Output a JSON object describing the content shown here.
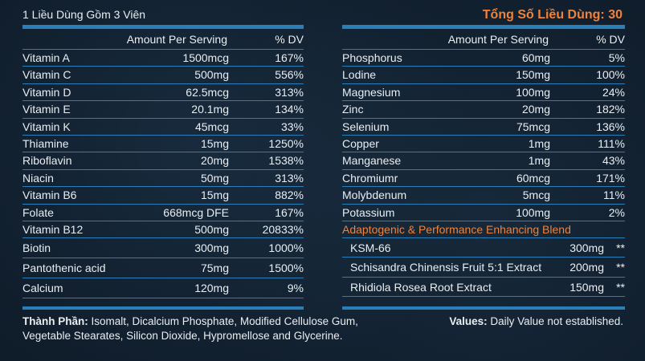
{
  "header": {
    "serving_note": "1 Liều Dùng Gồm 3 Viên",
    "total_servings": "Tổng Số Liều Dùng: 30"
  },
  "columns": {
    "amount": "Amount Per Serving",
    "dv": "% DV"
  },
  "left_rows": [
    {
      "name": "Vitamin A",
      "amount": "1500mcg",
      "dv": "167%"
    },
    {
      "name": "Vitamin C",
      "amount": "500mg",
      "dv": "556%"
    },
    {
      "name": "Vitamin D",
      "amount": "62.5mcg",
      "dv": "313%"
    },
    {
      "name": "Vitamin E",
      "amount": "20.1mg",
      "dv": "134%"
    },
    {
      "name": "Vitamin K",
      "amount": "45mcg",
      "dv": "33%"
    },
    {
      "name": "Thiamine",
      "amount": "15mg",
      "dv": "1250%"
    },
    {
      "name": "Riboflavin",
      "amount": "20mg",
      "dv": "1538%"
    },
    {
      "name": "Niacin",
      "amount": "50mg",
      "dv": "313%"
    },
    {
      "name": "Vitamin B6",
      "amount": "15mg",
      "dv": "882%"
    },
    {
      "name": "Folate",
      "amount": "668mcg DFE",
      "dv": "167%"
    },
    {
      "name": "Vitamin B12",
      "amount": "500mg",
      "dv": "20833%"
    },
    {
      "name": "Biotin",
      "amount": "300mg",
      "dv": "1000%"
    },
    {
      "name": "Pantothenic acid",
      "amount": "75mg",
      "dv": "1500%"
    },
    {
      "name": "Calcium",
      "amount": "120mg",
      "dv": "9%"
    }
  ],
  "right_rows": [
    {
      "name": "Phosphorus",
      "amount": "60mg",
      "dv": "5%"
    },
    {
      "name": "Lodine",
      "amount": "150mg",
      "dv": "100%"
    },
    {
      "name": "Magnesium",
      "amount": "100mg",
      "dv": "24%"
    },
    {
      "name": "Zinc",
      "amount": "20mg",
      "dv": "182%"
    },
    {
      "name": "Selenium",
      "amount": "75mcg",
      "dv": "136%"
    },
    {
      "name": "Copper",
      "amount": "1mg",
      "dv": "111%"
    },
    {
      "name": "Manganese",
      "amount": "1mg",
      "dv": "43%"
    },
    {
      "name": "Chromiumr",
      "amount": "60mcg",
      "dv": "171%"
    },
    {
      "name": "Molybdenum",
      "amount": "5mcg",
      "dv": "11%"
    },
    {
      "name": "Potassium",
      "amount": "100mg",
      "dv": "2%"
    }
  ],
  "blend": {
    "title": "Adaptogenic & Performance Enhancing Blend",
    "items": [
      {
        "name": "KSM-66",
        "amount": "300mg",
        "dv": "**"
      },
      {
        "name": "Schisandra Chinensis Fruit 5:1 Extract",
        "amount": "200mg",
        "dv": "**"
      },
      {
        "name": "Rhidiola Rosea Root Extract",
        "amount": "150mg",
        "dv": "**"
      }
    ]
  },
  "footer": {
    "ingredients_label": "Thành Phần:",
    "ingredients_text": " Isomalt, Dicalcium Phosphate, Modified Cellulose Gum, Vegetable Stearates, Silicon Dioxide, Hypromellose and Glycerine.",
    "values_label": "Values:",
    "values_text": " Daily Value not established."
  },
  "colors": {
    "background": "#0f1c2a",
    "accent_blue": "#2a7fb8",
    "accent_orange": "#f0823a"
  }
}
